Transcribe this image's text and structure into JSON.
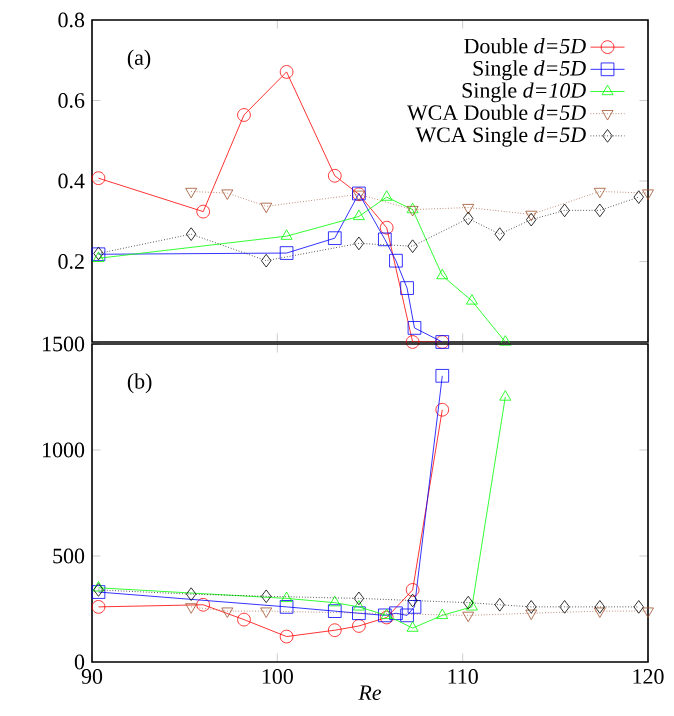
{
  "chart_data": [
    {
      "type": "line",
      "ylim": [
        0,
        0.8
      ],
      "yticks": [
        0.2,
        0.4,
        0.6,
        0.8
      ],
      "xlim": [
        90,
        120
      ],
      "xticks": [
        90,
        100,
        110,
        120
      ],
      "tick_labels": "y",
      "legend": "top right",
      "grid": false,
      "annotations": [
        "(a)"
      ],
      "series": [
        {
          "name": "Double *d=5D*",
          "color": "#ff0000",
          "marker": "circle",
          "line_style": "solid",
          "x": [
            90.35,
            96,
            98.2,
            100.5,
            103.1,
            104.4,
            105.9,
            107.3,
            108.9
          ],
          "values": [
            0.407,
            0.324,
            0.564,
            0.671,
            0.413,
            0.367,
            0.284,
            0.0,
            0.0
          ]
        },
        {
          "name": "Single *d=5D*",
          "color": "#0000ff",
          "marker": "square",
          "line_style": "solid",
          "x": [
            90.35,
            100.5,
            103.1,
            104.4,
            105.8,
            106.4,
            107.0,
            107.4,
            108.9
          ],
          "values": [
            0.218,
            0.221,
            0.258,
            0.369,
            0.255,
            0.202,
            0.134,
            0.035,
            0.0
          ]
        },
        {
          "name": "Single *d=10D*",
          "color": "#00ff00",
          "marker": "triangle",
          "line_style": "solid",
          "x": [
            90.35,
            100.5,
            104.4,
            105.9,
            107.3,
            108.9,
            110.5,
            112.3
          ],
          "values": [
            0.208,
            0.263,
            0.312,
            0.36,
            0.329,
            0.165,
            0.102,
            0.0
          ]
        },
        {
          "name": "WCA Double *d=5D*",
          "color": "#a0522d",
          "marker": "triangle down",
          "line_style": "dotted",
          "x": [
            95.35,
            97.3,
            99.4,
            104.4,
            107.3,
            110.3,
            113.7,
            117.4,
            120
          ],
          "values": [
            0.374,
            0.37,
            0.337,
            0.367,
            0.329,
            0.334,
            0.317,
            0.374,
            0.37
          ]
        },
        {
          "name": "WCA Single *d=5D*",
          "color": "#000000",
          "marker": "diamond",
          "line_style": "dotted",
          "x": [
            90.35,
            95.35,
            99.4,
            104.4,
            107.3,
            110.3,
            112.0,
            113.7,
            115.5,
            117.4,
            119.5
          ],
          "values": [
            0.22,
            0.268,
            0.202,
            0.245,
            0.238,
            0.307,
            0.268,
            0.304,
            0.327,
            0.327,
            0.36
          ]
        }
      ]
    },
    {
      "type": "line",
      "ylim": [
        0,
        1500
      ],
      "yticks": [
        0,
        500,
        1000,
        1500
      ],
      "xlim": [
        90,
        120
      ],
      "xticks": [
        90,
        100,
        110,
        120
      ],
      "xlabel": "*Re*",
      "grid": false,
      "annotations": [
        "(b)"
      ],
      "series": [
        {
          "color": "#ff0000",
          "marker": "circle",
          "line_style": "solid",
          "x": [
            90.35,
            96,
            98.2,
            100.5,
            103.1,
            104.4,
            105.9,
            107.3,
            108.9
          ],
          "values": [
            260,
            270,
            200,
            120,
            150,
            170,
            210,
            340,
            1190
          ]
        },
        {
          "color": "#0000ff",
          "marker": "square",
          "line_style": "solid",
          "x": [
            90.35,
            100.5,
            103.1,
            104.4,
            105.8,
            106.4,
            107.0,
            107.4,
            108.9
          ],
          "values": [
            330,
            260,
            240,
            230,
            220,
            230,
            220,
            260,
            1350
          ]
        },
        {
          "color": "#00ff00",
          "marker": "triangle",
          "line_style": "solid",
          "x": [
            90.35,
            100.5,
            103.1,
            104.4,
            105.9,
            107.3,
            108.9,
            110.5,
            112.3
          ],
          "values": [
            350,
            300,
            280,
            260,
            220,
            160,
            220,
            260,
            1250
          ]
        },
        {
          "color": "#a0522d",
          "marker": "triangle down",
          "line_style": "dotted",
          "x": [
            95.35,
            97.3,
            99.4,
            110.3,
            113.7,
            117.4,
            120
          ],
          "values": [
            260,
            240,
            240,
            220,
            230,
            240,
            240
          ]
        },
        {
          "color": "#000000",
          "marker": "diamond",
          "line_style": "dotted",
          "x": [
            90.35,
            95.35,
            99.4,
            104.4,
            107.3,
            110.3,
            112.0,
            113.7,
            115.5,
            117.4,
            119.5
          ],
          "values": [
            340,
            320,
            310,
            300,
            290,
            280,
            270,
            260,
            260,
            260,
            260
          ]
        }
      ]
    }
  ]
}
